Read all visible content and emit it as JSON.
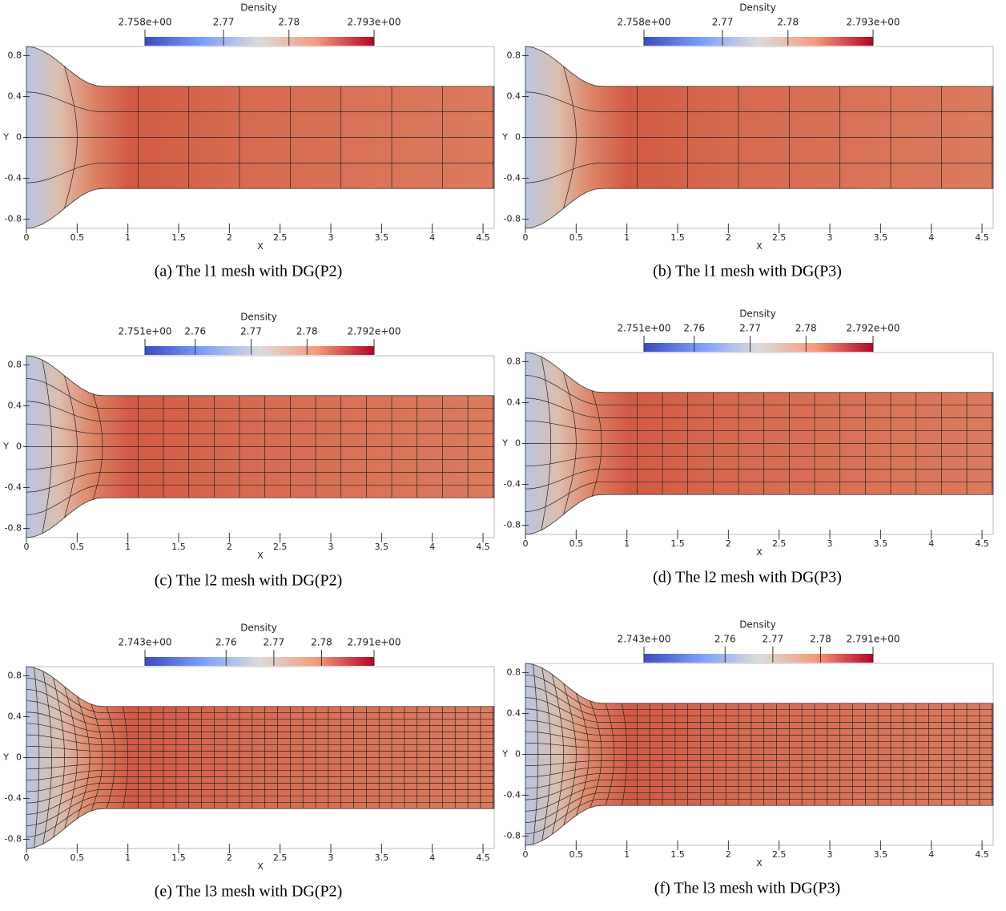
{
  "panels": [
    {
      "colorbar": {
        "title": "Density",
        "ticks": [
          {
            "value": 2.758,
            "label": "2.758e+00"
          },
          2.77,
          2.78,
          {
            "value": 2.793,
            "label": "2.793e+00"
          }
        ]
      },
      "x_label": "X",
      "y_label": "Y",
      "xlim": [
        0,
        4.61
      ],
      "ylim": [
        -0.89,
        0.89
      ],
      "xticks": [
        0,
        0.5,
        1,
        1.5,
        2,
        2.5,
        3,
        3.5,
        4,
        4.5
      ],
      "yticks": [
        -0.8,
        -0.4,
        0,
        0.4,
        0.8
      ],
      "caption": "(a) The l1 mesh with DG(P2)"
    },
    {
      "colorbar": {
        "title": "Density",
        "ticks": [
          {
            "value": 2.758,
            "label": "2.758e+00"
          },
          2.77,
          2.78,
          {
            "value": 2.793,
            "label": "2.793e+00"
          }
        ]
      },
      "x_label": "X",
      "y_label": "Y",
      "xlim": [
        0,
        4.61
      ],
      "ylim": [
        -0.89,
        0.89
      ],
      "xticks": [
        0,
        0.5,
        1,
        1.5,
        2,
        2.5,
        3,
        3.5,
        4,
        4.5
      ],
      "yticks": [
        -0.8,
        -0.4,
        0,
        0.4,
        0.8
      ],
      "caption": "(b) The l1 mesh with DG(P3)"
    },
    {
      "colorbar": {
        "title": "Density",
        "ticks": [
          {
            "value": 2.751,
            "label": "2.751e+00"
          },
          2.76,
          2.77,
          2.78,
          {
            "value": 2.792,
            "label": "2.792e+00"
          }
        ]
      },
      "x_label": "X",
      "y_label": "Y",
      "xlim": [
        0,
        4.61
      ],
      "ylim": [
        -0.89,
        0.89
      ],
      "xticks": [
        0,
        0.5,
        1,
        1.5,
        2,
        2.5,
        3,
        3.5,
        4,
        4.5
      ],
      "yticks": [
        -0.8,
        -0.4,
        0,
        0.4,
        0.8
      ],
      "caption": "(c) The l2 mesh with DG(P2)"
    },
    {
      "colorbar": {
        "title": "Density",
        "ticks": [
          {
            "value": 2.751,
            "label": "2.751e+00"
          },
          2.76,
          2.77,
          2.78,
          {
            "value": 2.792,
            "label": "2.792e+00"
          }
        ]
      },
      "x_label": "X",
      "y_label": "Y",
      "xlim": [
        0,
        4.61
      ],
      "ylim": [
        -0.89,
        0.89
      ],
      "xticks": [
        0,
        0.5,
        1,
        1.5,
        2,
        2.5,
        3,
        3.5,
        4,
        4.5
      ],
      "yticks": [
        -0.8,
        -0.4,
        0,
        0.4,
        0.8
      ],
      "caption": "(d) The l2 mesh with DG(P3)"
    },
    {
      "colorbar": {
        "title": "Density",
        "ticks": [
          {
            "value": 2.743,
            "label": "2.743e+00"
          },
          2.76,
          2.77,
          2.78,
          {
            "value": 2.791,
            "label": "2.791e+00"
          }
        ]
      },
      "x_label": "X",
      "y_label": "Y",
      "xlim": [
        0,
        4.61
      ],
      "ylim": [
        -0.89,
        0.89
      ],
      "xticks": [
        0,
        0.5,
        1,
        1.5,
        2,
        2.5,
        3,
        3.5,
        4,
        4.5
      ],
      "yticks": [
        -0.8,
        -0.4,
        0,
        0.4,
        0.8
      ],
      "caption": "(e) The l3 mesh with DG(P2)"
    },
    {
      "colorbar": {
        "title": "Density",
        "ticks": [
          {
            "value": 2.743,
            "label": "2.743e+00"
          },
          2.76,
          2.77,
          2.78,
          {
            "value": 2.791,
            "label": "2.791e+00"
          }
        ]
      },
      "x_label": "X",
      "y_label": "Y",
      "xlim": [
        0,
        4.61
      ],
      "ylim": [
        -0.89,
        0.89
      ],
      "xticks": [
        0,
        0.5,
        1,
        1.5,
        2,
        2.5,
        3,
        3.5,
        4,
        4.5
      ],
      "yticks": [
        -0.8,
        -0.4,
        0,
        0.4,
        0.8
      ],
      "caption": "(f) The l3 mesh with DG(P3)"
    }
  ]
}
